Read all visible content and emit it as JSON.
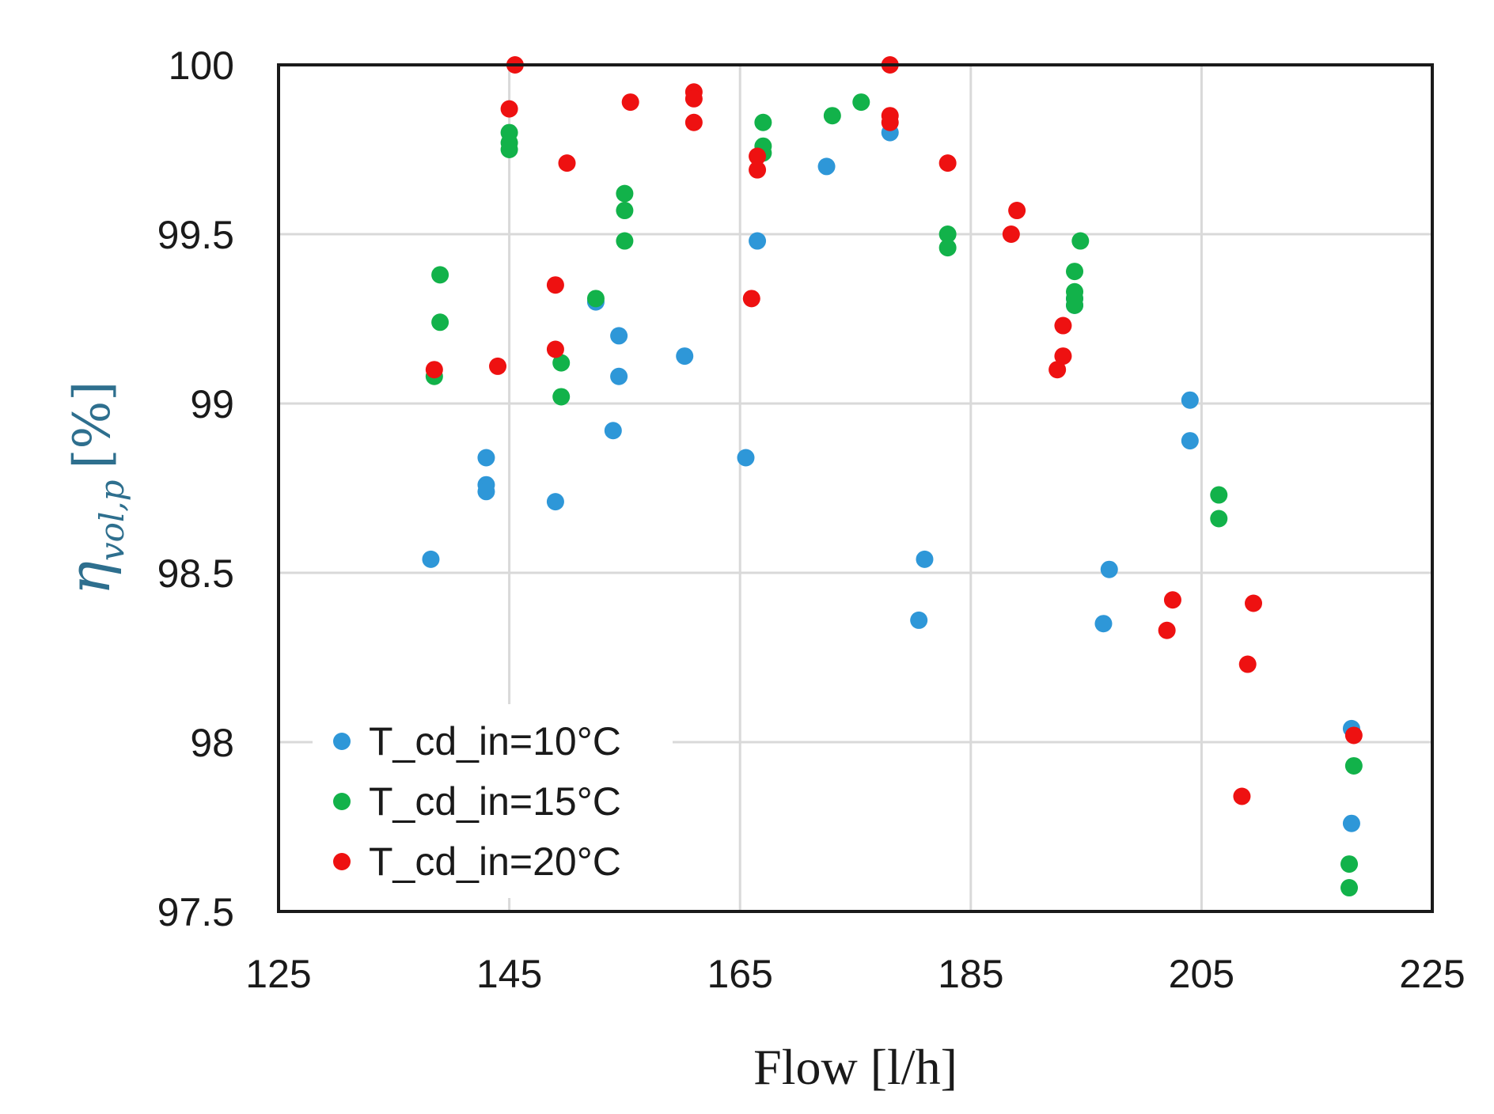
{
  "chart_data": {
    "type": "scatter",
    "xlabel": "Flow [l/h]",
    "ylabel_symbol": "η",
    "ylabel_subscript": "vol,p",
    "ylabel_unit": "[%]",
    "xlim": [
      125,
      225
    ],
    "ylim": [
      97.5,
      100
    ],
    "xticks": [
      "125",
      "145",
      "165",
      "185",
      "205",
      "225"
    ],
    "yticks": [
      "97.5",
      "98",
      "98.5",
      "99",
      "99.5",
      "100"
    ],
    "grid": true,
    "legend_position": "bottom-left",
    "series": [
      {
        "name": "T_cd_in=10°C",
        "color": "#2e97d8",
        "points": [
          [
            138.2,
            98.54
          ],
          [
            143.0,
            98.84
          ],
          [
            143.0,
            98.76
          ],
          [
            143.0,
            98.74
          ],
          [
            149.0,
            98.71
          ],
          [
            152.5,
            99.3
          ],
          [
            154.5,
            99.2
          ],
          [
            154.5,
            99.08
          ],
          [
            154.0,
            98.92
          ],
          [
            160.2,
            99.14
          ],
          [
            165.5,
            98.84
          ],
          [
            166.5,
            99.48
          ],
          [
            172.5,
            99.7
          ],
          [
            178.0,
            99.8
          ],
          [
            181.0,
            98.54
          ],
          [
            180.5,
            98.36
          ],
          [
            194.0,
            99.29
          ],
          [
            194.0,
            99.31
          ],
          [
            197.0,
            98.51
          ],
          [
            196.5,
            98.35
          ],
          [
            204.0,
            99.01
          ],
          [
            204.0,
            98.89
          ],
          [
            218.0,
            98.04
          ],
          [
            218.0,
            97.76
          ]
        ]
      },
      {
        "name": "T_cd_in=15°C",
        "color": "#12b24a",
        "points": [
          [
            138.5,
            99.08
          ],
          [
            139.0,
            99.38
          ],
          [
            139.0,
            99.24
          ],
          [
            145.0,
            99.8
          ],
          [
            145.0,
            99.77
          ],
          [
            145.0,
            99.75
          ],
          [
            149.5,
            99.12
          ],
          [
            149.5,
            99.02
          ],
          [
            152.5,
            99.31
          ],
          [
            155.0,
            99.62
          ],
          [
            155.0,
            99.57
          ],
          [
            155.0,
            99.48
          ],
          [
            167.0,
            99.83
          ],
          [
            167.0,
            99.76
          ],
          [
            167.0,
            99.74
          ],
          [
            173.0,
            99.85
          ],
          [
            175.5,
            99.89
          ],
          [
            183.0,
            99.5
          ],
          [
            183.0,
            99.46
          ],
          [
            194.0,
            99.39
          ],
          [
            194.0,
            99.33
          ],
          [
            194.0,
            99.31
          ],
          [
            194.0,
            99.29
          ],
          [
            194.5,
            99.48
          ],
          [
            206.5,
            98.73
          ],
          [
            206.5,
            98.66
          ],
          [
            218.2,
            97.93
          ],
          [
            217.8,
            97.64
          ],
          [
            217.8,
            97.57
          ]
        ]
      },
      {
        "name": "T_cd_in=20°C",
        "color": "#ee1111",
        "points": [
          [
            138.5,
            99.1
          ],
          [
            144.0,
            99.11
          ],
          [
            145.0,
            99.87
          ],
          [
            145.5,
            100.0
          ],
          [
            150.0,
            99.71
          ],
          [
            149.0,
            99.35
          ],
          [
            149.0,
            99.16
          ],
          [
            155.5,
            99.89
          ],
          [
            161.0,
            99.92
          ],
          [
            161.0,
            99.9
          ],
          [
            161.0,
            99.83
          ],
          [
            166.0,
            99.31
          ],
          [
            166.5,
            99.73
          ],
          [
            166.5,
            99.69
          ],
          [
            178.0,
            100.0
          ],
          [
            178.0,
            99.85
          ],
          [
            178.0,
            99.83
          ],
          [
            183.0,
            99.71
          ],
          [
            188.5,
            99.5
          ],
          [
            189.0,
            99.57
          ],
          [
            192.5,
            99.1
          ],
          [
            193.0,
            99.14
          ],
          [
            193.0,
            99.23
          ],
          [
            202.5,
            98.42
          ],
          [
            202.0,
            98.33
          ],
          [
            209.5,
            98.41
          ],
          [
            209.0,
            98.23
          ],
          [
            208.5,
            97.84
          ],
          [
            218.2,
            98.02
          ]
        ]
      }
    ]
  }
}
